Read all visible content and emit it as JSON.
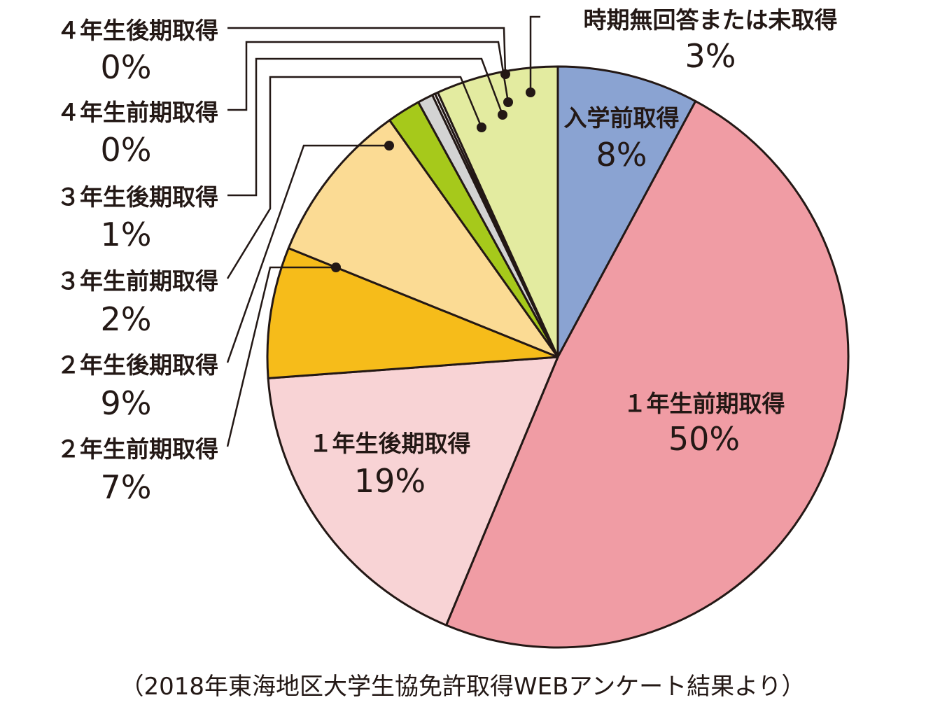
{
  "chart_data": {
    "type": "pie",
    "slices": [
      {
        "label": "入学前取得",
        "value": 8,
        "display": "8%",
        "color": "#8aa3d2"
      },
      {
        "label": "１年生前期取得",
        "value": 50,
        "display": "50%",
        "color": "#f09ca4"
      },
      {
        "label": "１年生後期取得",
        "value": 19,
        "display": "19%",
        "color": "#f8d3d5"
      },
      {
        "label": "２年生前期取得",
        "value": 7,
        "display": "7%",
        "color": "#f6bc1a"
      },
      {
        "label": "２年生後期取得",
        "value": 9,
        "display": "9%",
        "color": "#fbdb94"
      },
      {
        "label": "３年生前期取得",
        "value": 2,
        "display": "2%",
        "color": "#a6c91b"
      },
      {
        "label": "３年生後期取得",
        "value": 1,
        "display": "1%",
        "color": "#d3d3d3"
      },
      {
        "label": "４年生前期取得",
        "value": 0,
        "display": "0%",
        "color": "#ffffff"
      },
      {
        "label": "４年生後期取得",
        "value": 0,
        "display": "0%",
        "color": "#ffffff"
      },
      {
        "label": "時期無回答または未取得",
        "value": 3,
        "display": "3%",
        "color": "#e3eba0"
      }
    ]
  },
  "note": "（2018年東海地区大学生協免許取得WEBアンケート結果より）"
}
